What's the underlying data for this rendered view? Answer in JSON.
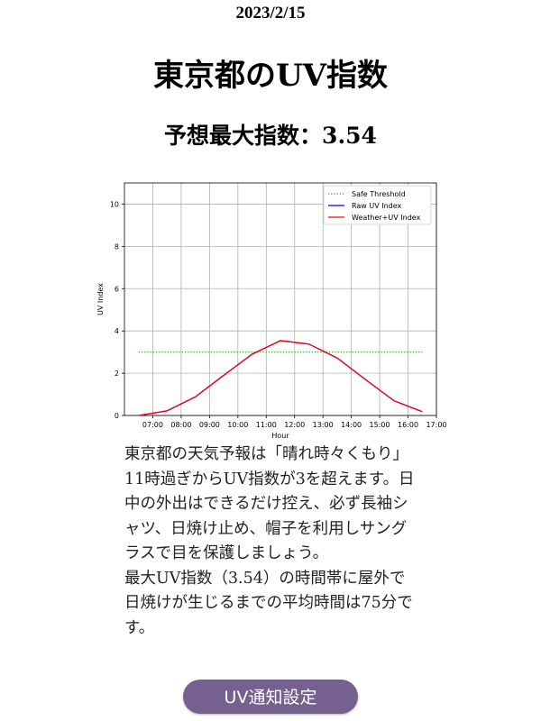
{
  "header": {
    "date": "2023/2/15",
    "title": "東京都のUV指数",
    "max_index": "予想最大指数：3.54"
  },
  "chart_data": {
    "type": "line",
    "xlabel": "Hour",
    "ylabel": "UV Index",
    "xlim": [
      6.0,
      17.0
    ],
    "ylim": [
      0,
      11
    ],
    "grid": true,
    "legend_position": "top-right",
    "x_ticks": [
      "07:00",
      "08:00",
      "09:00",
      "10:00",
      "11:00",
      "12:00",
      "13:00",
      "14:00",
      "15:00",
      "16:00",
      "17:00"
    ],
    "y_ticks": [
      "0",
      "2",
      "4",
      "6",
      "8",
      "10"
    ],
    "x": [
      "06:30",
      "07:30",
      "08:30",
      "09:30",
      "10:30",
      "11:30",
      "12:30",
      "13:30",
      "14:30",
      "15:30",
      "16:30"
    ],
    "series": [
      {
        "name": "Safe Threshold",
        "style": "dotted",
        "color": "#2ca02c",
        "values": [
          3,
          3,
          3,
          3,
          3,
          3,
          3,
          3,
          3,
          3,
          3
        ]
      },
      {
        "name": "Raw UV Index",
        "style": "solid",
        "color": "#0000ff",
        "values": [
          0,
          0.22,
          0.88,
          1.9,
          2.9,
          3.54,
          3.38,
          2.72,
          1.7,
          0.7,
          0.18
        ]
      },
      {
        "name": "Weather+UV Index",
        "style": "solid",
        "color": "#ff0000",
        "values": [
          0,
          0.22,
          0.88,
          1.9,
          2.9,
          3.54,
          3.38,
          2.72,
          1.7,
          0.7,
          0.18
        ]
      }
    ]
  },
  "description": {
    "paragraph1": "東京都の天気予報は「晴れ時々くもり」11時過ぎからUV指数が3を超えます。日中の外出はできるだけ控え、必ず長袖シャツ、日焼け止め、帽子を利用しサングラスで目を保護しましょう。",
    "paragraph2": "最大UV指数（3.54）の時間帯に屋外で日焼けが生じるまでの平均時間は75分です。"
  },
  "button": {
    "label": "UV通知設定",
    "color": "#76608f"
  }
}
